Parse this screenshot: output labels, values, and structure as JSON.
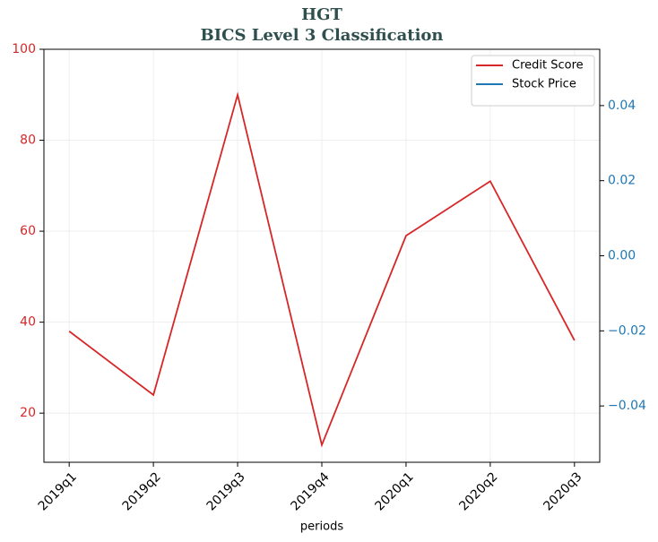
{
  "chart_data": {
    "type": "line",
    "title": "HGT",
    "subtitle": "BICS Level 3 Classification",
    "xlabel": "periods",
    "categories": [
      "2019q1",
      "2019q2",
      "2019q3",
      "2019q4",
      "2020q1",
      "2020q2",
      "2020q3"
    ],
    "series": [
      {
        "name": "Credit Score",
        "color": "#d62728",
        "values": [
          38,
          24,
          90,
          13,
          59,
          71,
          36
        ]
      },
      {
        "name": "Stock Price",
        "color": "#1f77b4",
        "axis": "y2",
        "values": [
          null,
          null,
          null,
          null,
          null,
          null,
          null
        ]
      }
    ],
    "xlim": [
      -0.3,
      6.3
    ],
    "ylim": [
      9.2,
      100
    ],
    "yticks": [
      20,
      40,
      60,
      80,
      100
    ],
    "y2lim": [
      -0.055,
      0.055
    ],
    "y2ticks": [
      {
        "value": -0.04,
        "label": "−0.04"
      },
      {
        "value": -0.02,
        "label": "−0.02"
      },
      {
        "value": 0,
        "label": "0.00"
      },
      0.02,
      0.04
    ],
    "grid": true,
    "legend": "upper right"
  }
}
